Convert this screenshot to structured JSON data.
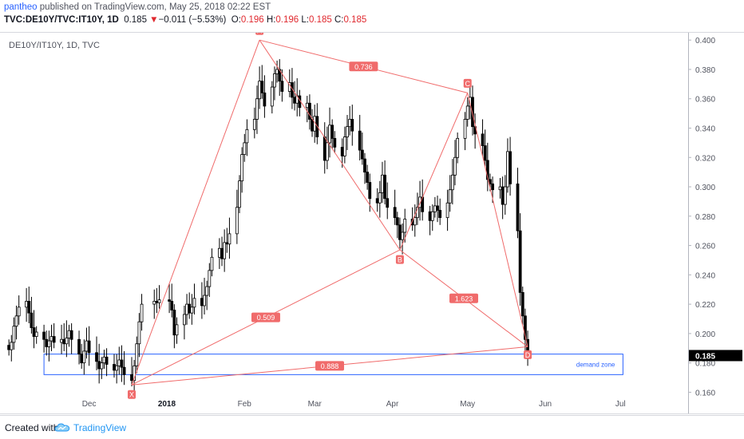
{
  "header": {
    "author": "pantheo",
    "published_text": "published on TradingView.com, May 25, 2018 02:22 EST",
    "symbol": "TVC:DE10Y/TVC:IT10Y, 1D",
    "last": "0.185",
    "change_arrow": "▼",
    "change": "−0.011 (−5.53%)",
    "o_label": "O:",
    "o_value": "0.196",
    "h_label": "H:",
    "h_value": "0.196",
    "l_label": "L:",
    "l_value": "0.185",
    "c_label": "C:",
    "c_value": "0.185"
  },
  "chart_label": "DE10Y/IT10Y, 1D, TVC",
  "footer": {
    "created_with": "Created with",
    "brand": "TradingView"
  },
  "colors": {
    "up": "#ffffff",
    "down": "#000000",
    "pattern": "#f06b6b",
    "zone": "#2962ff",
    "axis_text": "#50535e"
  },
  "icons": {
    "brand_logo": "tradingview-cloud-icon"
  },
  "chart_data": {
    "type": "candlestick",
    "series_name": "DE10Y/IT10Y",
    "ylim": [
      0.145,
      0.405
    ],
    "y_ticks": [
      "0.160",
      "0.180",
      "0.200",
      "0.220",
      "0.240",
      "0.260",
      "0.280",
      "0.300",
      "0.320",
      "0.340",
      "0.360",
      "0.380",
      "0.400"
    ],
    "x_ticks": [
      {
        "label": "Dec",
        "date": "2017-12-01"
      },
      {
        "label": "2018",
        "date": "2018-01-01"
      },
      {
        "label": "Feb",
        "date": "2018-02-01"
      },
      {
        "label": "Mar",
        "date": "2018-03-01"
      },
      {
        "label": "Apr",
        "date": "2018-04-01"
      },
      {
        "label": "May",
        "date": "2018-05-01"
      },
      {
        "label": "Jun",
        "date": "2018-06-01"
      },
      {
        "label": "Jul",
        "date": "2018-07-01"
      }
    ],
    "x_range": [
      "2017-10-29",
      "2018-07-28"
    ],
    "last_price_label": "0.185",
    "closes": [
      [
        "2017-10-30",
        0.189
      ],
      [
        "2017-10-31",
        0.194
      ],
      [
        "2017-11-01",
        0.205
      ],
      [
        "2017-11-02",
        0.212
      ],
      [
        "2017-11-03",
        0.218
      ],
      [
        "2017-11-06",
        0.222
      ],
      [
        "2017-11-07",
        0.214
      ],
      [
        "2017-11-08",
        0.204
      ],
      [
        "2017-11-09",
        0.198
      ],
      [
        "2017-11-10",
        0.201
      ],
      [
        "2017-11-13",
        0.196
      ],
      [
        "2017-11-14",
        0.191
      ],
      [
        "2017-11-15",
        0.195
      ],
      [
        "2017-11-16",
        0.198
      ],
      [
        "2017-11-17",
        0.194
      ],
      [
        "2017-11-20",
        0.196
      ],
      [
        "2017-11-21",
        0.193
      ],
      [
        "2017-11-22",
        0.197
      ],
      [
        "2017-11-23",
        0.202
      ],
      [
        "2017-11-24",
        0.196
      ],
      [
        "2017-11-27",
        0.186
      ],
      [
        "2017-11-28",
        0.18
      ],
      [
        "2017-11-29",
        0.188
      ],
      [
        "2017-11-30",
        0.195
      ],
      [
        "2017-12-01",
        0.187
      ],
      [
        "2017-12-04",
        0.181
      ],
      [
        "2017-12-05",
        0.176
      ],
      [
        "2017-12-06",
        0.18
      ],
      [
        "2017-12-07",
        0.184
      ],
      [
        "2017-12-08",
        0.179
      ],
      [
        "2017-12-11",
        0.175
      ],
      [
        "2017-12-12",
        0.178
      ],
      [
        "2017-12-13",
        0.182
      ],
      [
        "2017-12-14",
        0.177
      ],
      [
        "2017-12-15",
        0.172
      ],
      [
        "2017-12-18",
        0.168
      ],
      [
        "2017-12-19",
        0.178
      ],
      [
        "2017-12-20",
        0.193
      ],
      [
        "2017-12-21",
        0.208
      ],
      [
        "2017-12-22",
        0.22
      ],
      [
        "2017-12-27",
        0.222
      ],
      [
        "2017-12-28",
        0.221
      ],
      [
        "2017-12-29",
        0.223
      ],
      [
        "2018-01-02",
        0.222
      ],
      [
        "2018-01-03",
        0.216
      ],
      [
        "2018-01-04",
        0.199
      ],
      [
        "2018-01-05",
        0.206
      ],
      [
        "2018-01-08",
        0.213
      ],
      [
        "2018-01-09",
        0.22
      ],
      [
        "2018-01-10",
        0.214
      ],
      [
        "2018-01-11",
        0.218
      ],
      [
        "2018-01-12",
        0.224
      ],
      [
        "2018-01-15",
        0.219
      ],
      [
        "2018-01-16",
        0.226
      ],
      [
        "2018-01-17",
        0.232
      ],
      [
        "2018-01-18",
        0.243
      ],
      [
        "2018-01-19",
        0.252
      ],
      [
        "2018-01-22",
        0.258
      ],
      [
        "2018-01-23",
        0.251
      ],
      [
        "2018-01-24",
        0.262
      ],
      [
        "2018-01-25",
        0.261
      ],
      [
        "2018-01-26",
        0.268
      ],
      [
        "2018-01-29",
        0.286
      ],
      [
        "2018-01-30",
        0.304
      ],
      [
        "2018-01-31",
        0.322
      ],
      [
        "2018-02-01",
        0.33
      ],
      [
        "2018-02-02",
        0.339
      ],
      [
        "2018-02-05",
        0.346
      ],
      [
        "2018-02-06",
        0.36
      ],
      [
        "2018-02-07",
        0.372
      ],
      [
        "2018-02-08",
        0.364
      ],
      [
        "2018-02-09",
        0.355
      ],
      [
        "2018-02-12",
        0.368
      ],
      [
        "2018-02-13",
        0.377
      ],
      [
        "2018-02-14",
        0.38
      ],
      [
        "2018-02-15",
        0.372
      ],
      [
        "2018-02-16",
        0.365
      ],
      [
        "2018-02-19",
        0.371
      ],
      [
        "2018-02-20",
        0.361
      ],
      [
        "2018-02-21",
        0.357
      ],
      [
        "2018-02-22",
        0.362
      ],
      [
        "2018-02-23",
        0.354
      ],
      [
        "2018-02-26",
        0.357
      ],
      [
        "2018-02-27",
        0.346
      ],
      [
        "2018-02-28",
        0.338
      ],
      [
        "2018-03-01",
        0.348
      ],
      [
        "2018-03-02",
        0.334
      ],
      [
        "2018-03-05",
        0.318
      ],
      [
        "2018-03-06",
        0.33
      ],
      [
        "2018-03-07",
        0.342
      ],
      [
        "2018-03-08",
        0.333
      ],
      [
        "2018-03-09",
        0.327
      ],
      [
        "2018-03-12",
        0.321
      ],
      [
        "2018-03-13",
        0.334
      ],
      [
        "2018-03-14",
        0.341
      ],
      [
        "2018-03-15",
        0.346
      ],
      [
        "2018-03-16",
        0.338
      ],
      [
        "2018-03-19",
        0.325
      ],
      [
        "2018-03-20",
        0.319
      ],
      [
        "2018-03-21",
        0.31
      ],
      [
        "2018-03-22",
        0.303
      ],
      [
        "2018-03-23",
        0.292
      ],
      [
        "2018-03-26",
        0.289
      ],
      [
        "2018-03-27",
        0.296
      ],
      [
        "2018-03-28",
        0.308
      ],
      [
        "2018-03-29",
        0.292
      ],
      [
        "2018-03-30",
        0.286
      ],
      [
        "2018-04-02",
        0.279
      ],
      [
        "2018-04-03",
        0.274
      ],
      [
        "2018-04-04",
        0.264
      ],
      [
        "2018-04-05",
        0.269
      ],
      [
        "2018-04-06",
        0.278
      ],
      [
        "2018-04-09",
        0.274
      ],
      [
        "2018-04-10",
        0.279
      ],
      [
        "2018-04-11",
        0.286
      ],
      [
        "2018-04-12",
        0.293
      ],
      [
        "2018-04-13",
        0.283
      ],
      [
        "2018-04-16",
        0.277
      ],
      [
        "2018-04-17",
        0.283
      ],
      [
        "2018-04-18",
        0.287
      ],
      [
        "2018-04-19",
        0.284
      ],
      [
        "2018-04-20",
        0.279
      ],
      [
        "2018-04-23",
        0.289
      ],
      [
        "2018-04-24",
        0.298
      ],
      [
        "2018-04-25",
        0.308
      ],
      [
        "2018-04-26",
        0.32
      ],
      [
        "2018-04-27",
        0.333
      ],
      [
        "2018-04-30",
        0.346
      ],
      [
        "2018-05-01",
        0.355
      ],
      [
        "2018-05-02",
        0.361
      ],
      [
        "2018-05-03",
        0.341
      ],
      [
        "2018-05-04",
        0.336
      ],
      [
        "2018-05-07",
        0.328
      ],
      [
        "2018-05-08",
        0.318
      ],
      [
        "2018-05-09",
        0.305
      ],
      [
        "2018-05-10",
        0.302
      ],
      [
        "2018-05-11",
        0.298
      ],
      [
        "2018-05-14",
        0.3
      ],
      [
        "2018-05-15",
        0.288
      ],
      [
        "2018-05-16",
        0.3
      ],
      [
        "2018-05-17",
        0.324
      ],
      [
        "2018-05-18",
        0.302
      ],
      [
        "2018-05-21",
        0.27
      ],
      [
        "2018-05-22",
        0.228
      ],
      [
        "2018-05-23",
        0.212
      ],
      [
        "2018-05-24",
        0.196
      ],
      [
        "2018-05-25",
        0.185
      ]
    ],
    "harmonic_pattern": {
      "points": [
        {
          "label": "X",
          "date": "2017-12-18",
          "price": 0.165
        },
        {
          "label": "A",
          "date": "2018-02-07",
          "price": 0.4
        },
        {
          "label": "B",
          "date": "2018-04-04",
          "price": 0.257
        },
        {
          "label": "C",
          "date": "2018-05-01",
          "price": 0.364
        },
        {
          "label": "D",
          "date": "2018-05-25",
          "price": 0.191
        }
      ],
      "ratios": [
        {
          "value": "0.509",
          "between": [
            "X",
            "B"
          ]
        },
        {
          "value": "0.736",
          "between": [
            "A",
            "C"
          ]
        },
        {
          "value": "1.623",
          "between": [
            "B",
            "D"
          ]
        },
        {
          "value": "0.888",
          "between": [
            "X",
            "D"
          ]
        }
      ]
    },
    "zone": {
      "label": "demand zone",
      "from": "2017-11-13",
      "to": "2018-07-02",
      "top": 0.186,
      "bottom": 0.172
    }
  }
}
